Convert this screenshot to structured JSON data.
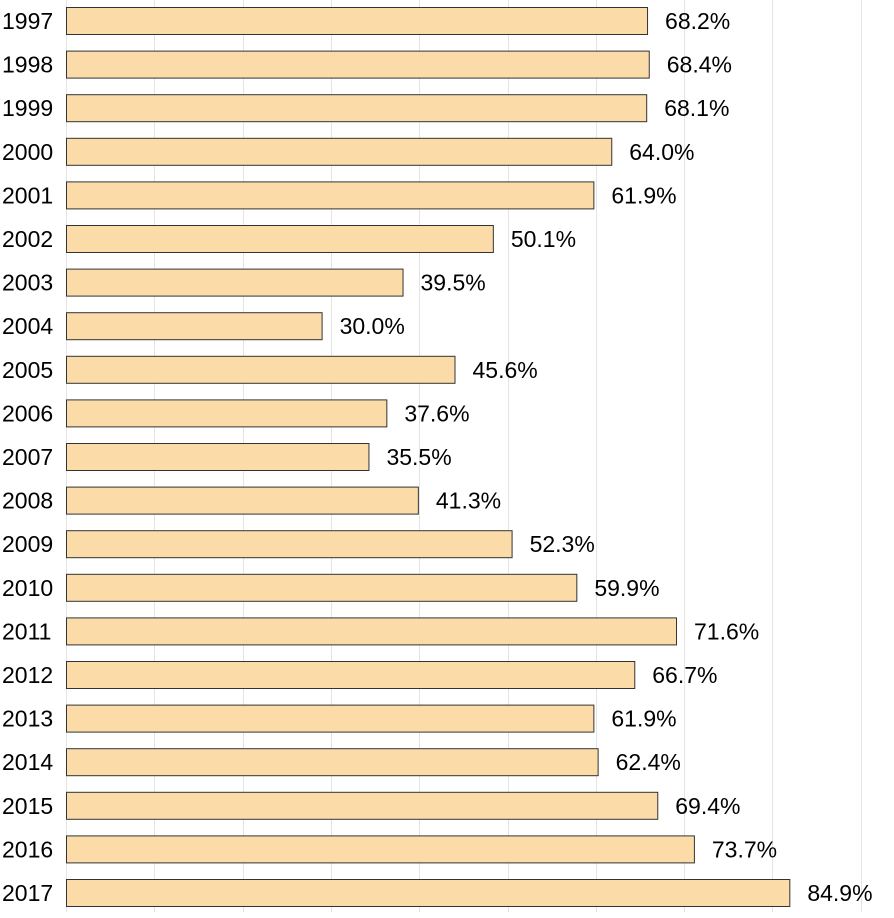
{
  "chart_data": {
    "type": "bar",
    "orientation": "horizontal",
    "categories": [
      "1997",
      "1998",
      "1999",
      "2000",
      "2001",
      "2002",
      "2003",
      "2004",
      "2005",
      "2006",
      "2007",
      "2008",
      "2009",
      "2010",
      "2011",
      "2012",
      "2013",
      "2014",
      "2015",
      "2016",
      "2017"
    ],
    "values": [
      68.2,
      68.4,
      68.1,
      64.0,
      61.9,
      50.1,
      39.5,
      30.0,
      45.6,
      37.6,
      35.5,
      41.3,
      52.3,
      59.9,
      71.6,
      66.7,
      61.9,
      62.4,
      69.4,
      73.7,
      84.9
    ],
    "value_labels": [
      "68.2%",
      "68.4%",
      "68.1%",
      "64.0%",
      "61.9%",
      "50.1%",
      "39.5%",
      "30.0%",
      "45.6%",
      "37.6%",
      "35.5%",
      "41.3%",
      "52.3%",
      "59.9%",
      "71.6%",
      "66.7%",
      "61.9%",
      "62.4%",
      "69.4%",
      "73.7%",
      "84.9%"
    ],
    "xlim": [
      0,
      93
    ],
    "grid": true,
    "bar_color": "#fbdca9",
    "bar_border_color": "#333333"
  }
}
